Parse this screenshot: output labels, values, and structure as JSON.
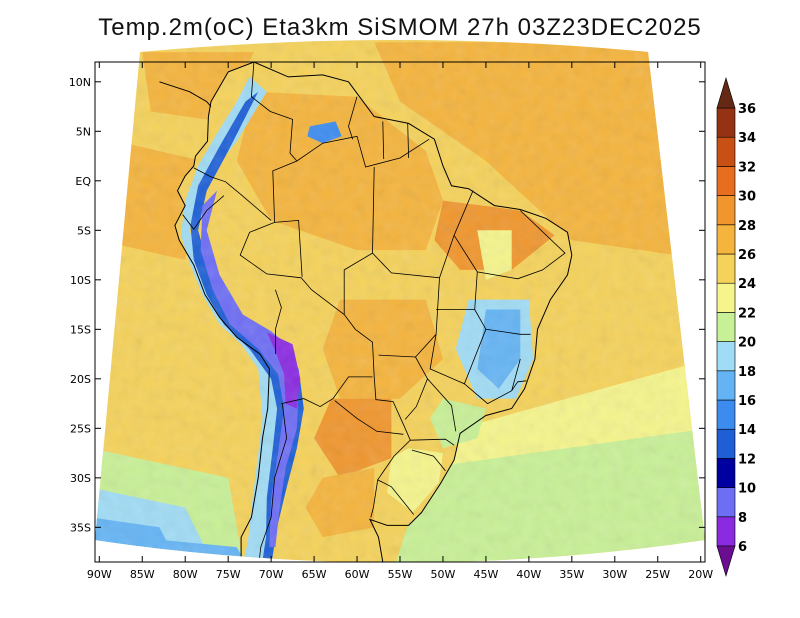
{
  "title": "Temp.2m(oC) Eta3km SiSMOM 27h 03Z23DEC2025",
  "map": {
    "lat_labels": [
      "10N",
      "5N",
      "EQ",
      "5S",
      "10S",
      "15S",
      "20S",
      "25S",
      "30S",
      "35S"
    ],
    "lat_values": [
      10,
      5,
      0,
      -5,
      -10,
      -15,
      -20,
      -25,
      -30,
      -35
    ],
    "lon_labels": [
      "90W",
      "85W",
      "80W",
      "75W",
      "70W",
      "65W",
      "60W",
      "55W",
      "50W",
      "45W",
      "40W",
      "35W",
      "30W",
      "25W",
      "20W"
    ],
    "lon_values": [
      -90,
      -85,
      -80,
      -75,
      -70,
      -65,
      -60,
      -55,
      -50,
      -45,
      -40,
      -35,
      -30,
      -25,
      -20
    ],
    "lon_range": [
      -90.5,
      -19.5
    ],
    "lat_range": [
      12,
      -38.5
    ],
    "projection": "conic"
  },
  "colorbar": {
    "ticks": [
      "6",
      "8",
      "10",
      "12",
      "14",
      "16",
      "18",
      "20",
      "22",
      "24",
      "26",
      "28",
      "30",
      "32",
      "34",
      "36"
    ],
    "colors": [
      "#6a0d91",
      "#8a2be2",
      "#6e6ef5",
      "#0000a0",
      "#1e5fd6",
      "#3c8cf0",
      "#64b4f5",
      "#a0dcf5",
      "#c8f096",
      "#f5f58c",
      "#f5d25a",
      "#f5b43c",
      "#f0962d",
      "#e66e1e",
      "#c85014",
      "#963214",
      "#642814"
    ],
    "unit": "oC"
  },
  "temperature_fields": {
    "ocean_atlantic_north_c": 27,
    "ocean_pacific_c": 25,
    "ocean_south_c": 20,
    "andes_c": 8,
    "amazon_c": 27,
    "brazil_highlands_c": 18
  },
  "colors": {
    "coastline": "#000000",
    "border": "#000000",
    "background": "#ffffff"
  }
}
